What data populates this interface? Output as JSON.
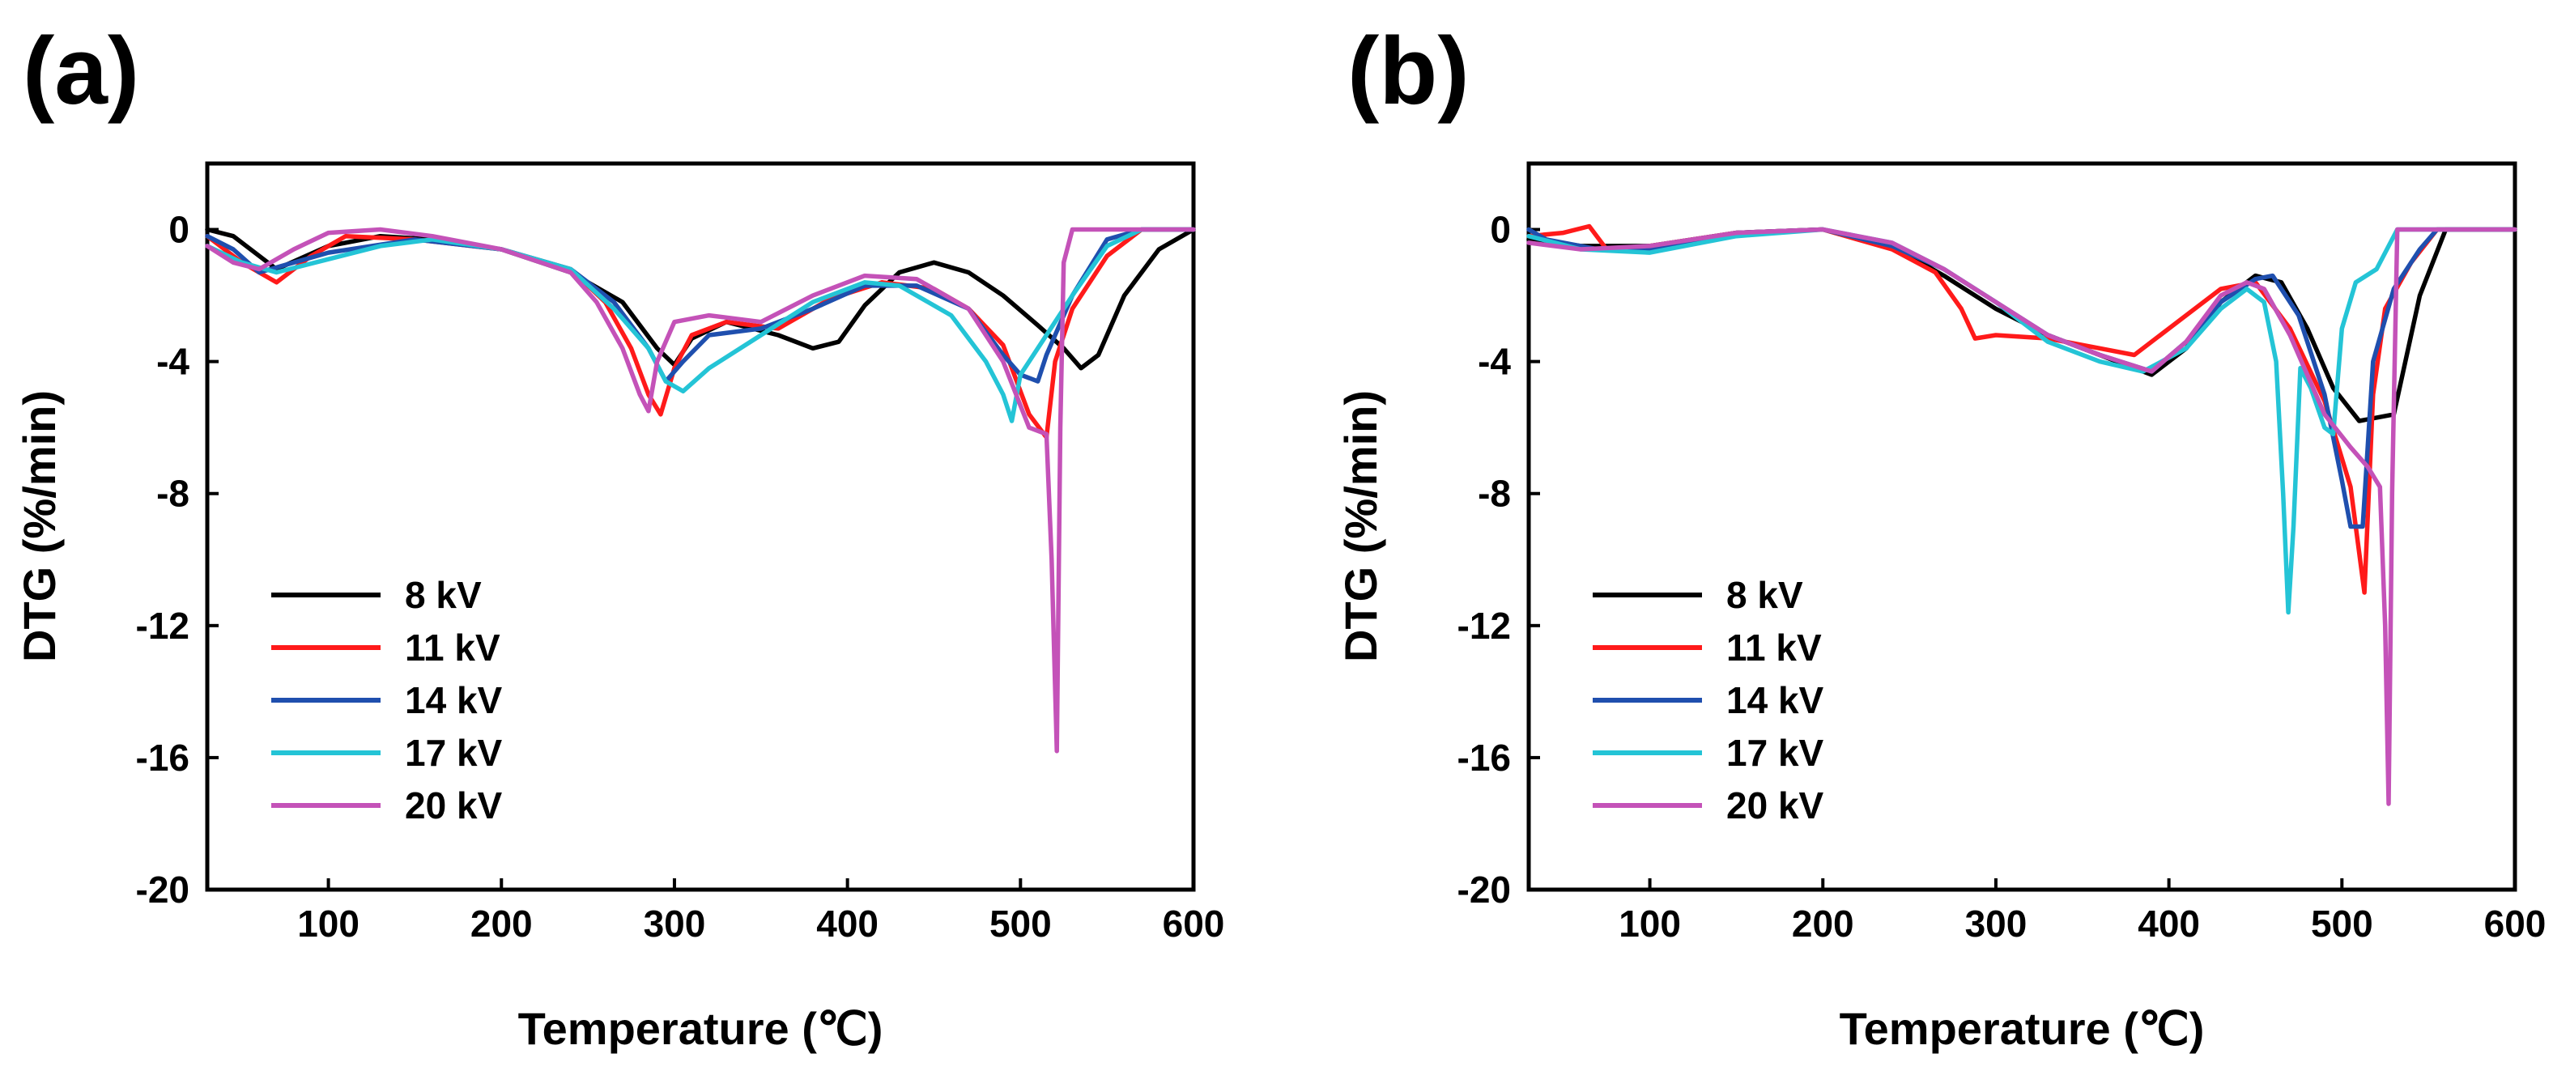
{
  "colors": {
    "8 kV": "#000000",
    "11 kV": "#ff1a1a",
    "14 kV": "#1f4fae",
    "17 kV": "#24c4d6",
    "20 kV": "#c452b8"
  },
  "chart_data": [
    {
      "type": "line",
      "panel_label": "(a)",
      "xlabel": "Temperature (℃)",
      "ylabel": "DTG (%/min)",
      "xlim": [
        30,
        600
      ],
      "ylim": [
        -20,
        2
      ],
      "xticks": [
        100,
        200,
        300,
        400,
        500,
        600
      ],
      "yticks": [
        0,
        -4,
        -8,
        -12,
        -16,
        -20
      ],
      "legend_position": "lower-left",
      "series": [
        {
          "name": "8 kV",
          "points": [
            [
              30,
              0
            ],
            [
              45,
              -0.2
            ],
            [
              70,
              -1.2
            ],
            [
              100,
              -0.5
            ],
            [
              130,
              -0.2
            ],
            [
              160,
              -0.3
            ],
            [
              200,
              -0.6
            ],
            [
              240,
              -1.3
            ],
            [
              270,
              -2.2
            ],
            [
              290,
              -3.6
            ],
            [
              300,
              -4.1
            ],
            [
              310,
              -3.3
            ],
            [
              330,
              -2.8
            ],
            [
              360,
              -3.2
            ],
            [
              380,
              -3.6
            ],
            [
              395,
              -3.4
            ],
            [
              410,
              -2.3
            ],
            [
              430,
              -1.3
            ],
            [
              450,
              -1.0
            ],
            [
              470,
              -1.3
            ],
            [
              490,
              -2.0
            ],
            [
              510,
              -2.9
            ],
            [
              525,
              -3.6
            ],
            [
              535,
              -4.2
            ],
            [
              545,
              -3.8
            ],
            [
              560,
              -2.0
            ],
            [
              580,
              -0.6
            ],
            [
              600,
              0
            ]
          ]
        },
        {
          "name": "11 kV",
          "points": [
            [
              30,
              -0.2
            ],
            [
              50,
              -1.0
            ],
            [
              70,
              -1.6
            ],
            [
              90,
              -0.8
            ],
            [
              110,
              -0.2
            ],
            [
              150,
              -0.3
            ],
            [
              200,
              -0.6
            ],
            [
              240,
              -1.2
            ],
            [
              260,
              -2.2
            ],
            [
              275,
              -3.6
            ],
            [
              285,
              -5.0
            ],
            [
              292,
              -5.6
            ],
            [
              300,
              -4.2
            ],
            [
              310,
              -3.2
            ],
            [
              330,
              -2.8
            ],
            [
              360,
              -3.0
            ],
            [
              390,
              -2.1
            ],
            [
              420,
              -1.6
            ],
            [
              450,
              -1.8
            ],
            [
              470,
              -2.4
            ],
            [
              490,
              -3.5
            ],
            [
              505,
              -5.6
            ],
            [
              515,
              -6.3
            ],
            [
              520,
              -4.0
            ],
            [
              530,
              -2.4
            ],
            [
              550,
              -0.8
            ],
            [
              570,
              0
            ],
            [
              600,
              0
            ]
          ]
        },
        {
          "name": "14 kV",
          "points": [
            [
              30,
              -0.2
            ],
            [
              45,
              -0.6
            ],
            [
              60,
              -1.3
            ],
            [
              80,
              -1.0
            ],
            [
              100,
              -0.7
            ],
            [
              150,
              -0.3
            ],
            [
              200,
              -0.6
            ],
            [
              240,
              -1.2
            ],
            [
              265,
              -2.2
            ],
            [
              285,
              -3.6
            ],
            [
              295,
              -4.6
            ],
            [
              305,
              -4.0
            ],
            [
              320,
              -3.2
            ],
            [
              350,
              -3.0
            ],
            [
              380,
              -2.4
            ],
            [
              410,
              -1.7
            ],
            [
              440,
              -1.7
            ],
            [
              470,
              -2.4
            ],
            [
              490,
              -3.8
            ],
            [
              500,
              -4.4
            ],
            [
              510,
              -4.6
            ],
            [
              515,
              -3.8
            ],
            [
              530,
              -2.0
            ],
            [
              550,
              -0.3
            ],
            [
              570,
              0
            ],
            [
              600,
              0
            ]
          ]
        },
        {
          "name": "17 kV",
          "points": [
            [
              30,
              -0.5
            ],
            [
              50,
              -1.0
            ],
            [
              70,
              -1.3
            ],
            [
              100,
              -0.9
            ],
            [
              130,
              -0.5
            ],
            [
              160,
              -0.3
            ],
            [
              200,
              -0.6
            ],
            [
              240,
              -1.2
            ],
            [
              265,
              -2.4
            ],
            [
              285,
              -3.6
            ],
            [
              295,
              -4.6
            ],
            [
              305,
              -4.9
            ],
            [
              320,
              -4.2
            ],
            [
              350,
              -3.2
            ],
            [
              380,
              -2.2
            ],
            [
              410,
              -1.6
            ],
            [
              430,
              -1.7
            ],
            [
              460,
              -2.6
            ],
            [
              480,
              -4.0
            ],
            [
              490,
              -5.0
            ],
            [
              495,
              -5.8
            ],
            [
              500,
              -4.4
            ],
            [
              510,
              -3.6
            ],
            [
              530,
              -2.0
            ],
            [
              550,
              -0.5
            ],
            [
              570,
              0
            ],
            [
              600,
              0
            ]
          ]
        },
        {
          "name": "20 kV",
          "points": [
            [
              30,
              -0.5
            ],
            [
              45,
              -1.0
            ],
            [
              60,
              -1.2
            ],
            [
              80,
              -0.6
            ],
            [
              100,
              -0.1
            ],
            [
              130,
              0
            ],
            [
              160,
              -0.2
            ],
            [
              200,
              -0.6
            ],
            [
              240,
              -1.3
            ],
            [
              255,
              -2.2
            ],
            [
              270,
              -3.6
            ],
            [
              280,
              -5.0
            ],
            [
              285,
              -5.5
            ],
            [
              290,
              -4.0
            ],
            [
              300,
              -2.8
            ],
            [
              320,
              -2.6
            ],
            [
              350,
              -2.8
            ],
            [
              380,
              -2.0
            ],
            [
              410,
              -1.4
            ],
            [
              440,
              -1.5
            ],
            [
              470,
              -2.4
            ],
            [
              490,
              -4.0
            ],
            [
              505,
              -6.0
            ],
            [
              515,
              -6.2
            ],
            [
              518,
              -10.0
            ],
            [
              521,
              -15.8
            ],
            [
              523,
              -6.0
            ],
            [
              525,
              -1.0
            ],
            [
              530,
              0
            ],
            [
              600,
              0
            ]
          ]
        }
      ]
    },
    {
      "type": "line",
      "panel_label": "(b)",
      "xlabel": "Temperature (℃)",
      "ylabel": "DTG (%/min)",
      "xlim": [
        30,
        600
      ],
      "ylim": [
        -20,
        2
      ],
      "xticks": [
        100,
        200,
        300,
        400,
        500,
        600
      ],
      "yticks": [
        0,
        -4,
        -8,
        -12,
        -16,
        -20
      ],
      "legend_position": "lower-left",
      "series": [
        {
          "name": "8 kV",
          "points": [
            [
              30,
              -0.3
            ],
            [
              60,
              -0.5
            ],
            [
              100,
              -0.5
            ],
            [
              150,
              -0.1
            ],
            [
              200,
              0
            ],
            [
              240,
              -0.5
            ],
            [
              270,
              -1.4
            ],
            [
              300,
              -2.4
            ],
            [
              330,
              -3.2
            ],
            [
              360,
              -3.8
            ],
            [
              390,
              -4.4
            ],
            [
              410,
              -3.6
            ],
            [
              430,
              -2.2
            ],
            [
              450,
              -1.4
            ],
            [
              465,
              -1.6
            ],
            [
              480,
              -3.0
            ],
            [
              495,
              -4.8
            ],
            [
              510,
              -5.8
            ],
            [
              530,
              -5.6
            ],
            [
              545,
              -2.0
            ],
            [
              560,
              0
            ],
            [
              600,
              0
            ]
          ]
        },
        {
          "name": "11 kV",
          "points": [
            [
              30,
              -0.2
            ],
            [
              50,
              -0.1
            ],
            [
              65,
              0.1
            ],
            [
              75,
              -0.6
            ],
            [
              100,
              -0.5
            ],
            [
              150,
              -0.1
            ],
            [
              200,
              0
            ],
            [
              240,
              -0.6
            ],
            [
              265,
              -1.3
            ],
            [
              280,
              -2.4
            ],
            [
              288,
              -3.3
            ],
            [
              300,
              -3.2
            ],
            [
              330,
              -3.3
            ],
            [
              360,
              -3.6
            ],
            [
              380,
              -3.8
            ],
            [
              405,
              -2.8
            ],
            [
              430,
              -1.8
            ],
            [
              450,
              -1.6
            ],
            [
              470,
              -3.0
            ],
            [
              490,
              -5.2
            ],
            [
              505,
              -7.8
            ],
            [
              510,
              -9.8
            ],
            [
              513,
              -11.0
            ],
            [
              518,
              -5.0
            ],
            [
              525,
              -2.4
            ],
            [
              540,
              -1.0
            ],
            [
              555,
              0
            ],
            [
              600,
              0
            ]
          ]
        },
        {
          "name": "14 kV",
          "points": [
            [
              30,
              0
            ],
            [
              40,
              -0.3
            ],
            [
              70,
              -0.6
            ],
            [
              100,
              -0.6
            ],
            [
              150,
              -0.1
            ],
            [
              200,
              0
            ],
            [
              240,
              -0.5
            ],
            [
              270,
              -1.2
            ],
            [
              300,
              -2.2
            ],
            [
              330,
              -3.2
            ],
            [
              360,
              -3.8
            ],
            [
              390,
              -4.3
            ],
            [
              410,
              -3.4
            ],
            [
              430,
              -2.2
            ],
            [
              450,
              -1.5
            ],
            [
              460,
              -1.4
            ],
            [
              475,
              -2.6
            ],
            [
              490,
              -5.0
            ],
            [
              500,
              -7.6
            ],
            [
              505,
              -9.0
            ],
            [
              512,
              -9.0
            ],
            [
              518,
              -4.0
            ],
            [
              530,
              -1.8
            ],
            [
              545,
              -0.6
            ],
            [
              555,
              0
            ],
            [
              600,
              0
            ]
          ]
        },
        {
          "name": "17 kV",
          "points": [
            [
              30,
              -0.2
            ],
            [
              60,
              -0.6
            ],
            [
              100,
              -0.7
            ],
            [
              150,
              -0.2
            ],
            [
              200,
              0
            ],
            [
              240,
              -0.4
            ],
            [
              270,
              -1.2
            ],
            [
              300,
              -2.2
            ],
            [
              330,
              -3.4
            ],
            [
              360,
              -4.0
            ],
            [
              385,
              -4.3
            ],
            [
              410,
              -3.6
            ],
            [
              430,
              -2.4
            ],
            [
              445,
              -1.8
            ],
            [
              455,
              -2.2
            ],
            [
              462,
              -4.0
            ],
            [
              466,
              -8.0
            ],
            [
              469,
              -11.6
            ],
            [
              472,
              -9.0
            ],
            [
              476,
              -4.2
            ],
            [
              482,
              -4.8
            ],
            [
              490,
              -6.0
            ],
            [
              495,
              -6.2
            ],
            [
              500,
              -3.0
            ],
            [
              508,
              -1.6
            ],
            [
              520,
              -1.2
            ],
            [
              532,
              0
            ],
            [
              545,
              0
            ],
            [
              600,
              0
            ]
          ]
        },
        {
          "name": "20 kV",
          "points": [
            [
              30,
              -0.4
            ],
            [
              60,
              -0.6
            ],
            [
              100,
              -0.5
            ],
            [
              150,
              -0.1
            ],
            [
              200,
              0
            ],
            [
              240,
              -0.4
            ],
            [
              270,
              -1.2
            ],
            [
              300,
              -2.2
            ],
            [
              330,
              -3.2
            ],
            [
              360,
              -3.8
            ],
            [
              390,
              -4.3
            ],
            [
              410,
              -3.4
            ],
            [
              430,
              -2.0
            ],
            [
              445,
              -1.6
            ],
            [
              455,
              -1.8
            ],
            [
              470,
              -3.2
            ],
            [
              490,
              -5.6
            ],
            [
              505,
              -6.6
            ],
            [
              515,
              -7.2
            ],
            [
              522,
              -7.8
            ],
            [
              525,
              -12.0
            ],
            [
              527,
              -17.4
            ],
            [
              529,
              -8.0
            ],
            [
              532,
              0
            ],
            [
              600,
              0
            ]
          ]
        }
      ]
    }
  ]
}
